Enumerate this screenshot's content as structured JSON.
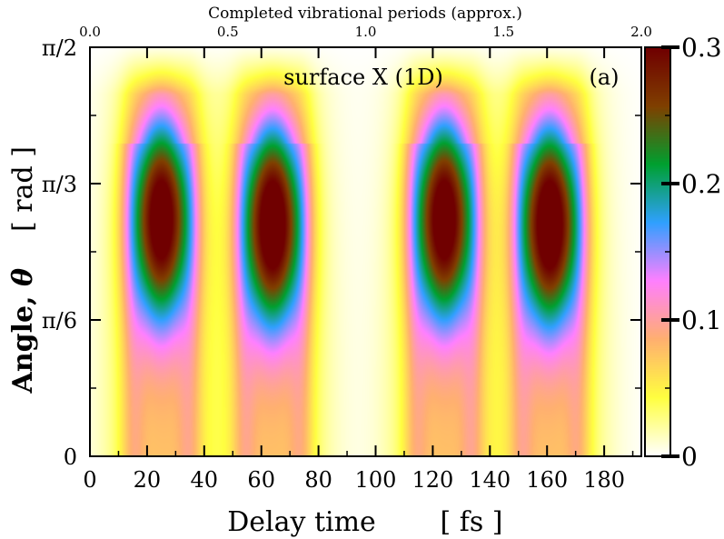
{
  "chart_data": {
    "type": "heatmap",
    "panel_label": "(a)",
    "annotation": "surface X (1D)",
    "xlabel": "Delay time",
    "xunit": "[ fs ]",
    "ylabel_main": "Angle, ",
    "ylabel_symbol": "θ",
    "yunit": "[ rad ]",
    "top_axis_label": "Completed vibrational periods (approx.)",
    "xlim": [
      0,
      193
    ],
    "ylim_rad": [
      0,
      1.5708
    ],
    "x_ticks": [
      0,
      20,
      40,
      60,
      80,
      100,
      120,
      140,
      160,
      180
    ],
    "x_tick_labels": [
      "0",
      "20",
      "40",
      "60",
      "80",
      "100",
      "120",
      "140",
      "160",
      "180"
    ],
    "y_ticks_rad": [
      0,
      0.5236,
      1.0472,
      1.5708
    ],
    "y_tick_labels": [
      "0",
      "π/6",
      "π/3",
      "π/2"
    ],
    "top_ticks": [
      0.0,
      0.5,
      1.0,
      1.5,
      2.0
    ],
    "top_tick_labels": [
      "0.0",
      "0.5",
      "1.0",
      "1.5",
      "2.0"
    ],
    "colorbar": {
      "range": [
        0,
        0.3
      ],
      "ticks": [
        0,
        0.1,
        0.2,
        0.3
      ],
      "tick_labels": [
        "0",
        "0.1",
        "0.2",
        "0.3"
      ],
      "colors": [
        "#ffffff",
        "#ffff40",
        "#ffb070",
        "#ff80ff",
        "#30a0ff",
        "#00a030",
        "#804000",
        "#700000"
      ]
    },
    "lobes": [
      {
        "t_center": 25,
        "theta_center_rad": 0.92,
        "peak": 0.28
      },
      {
        "t_center": 64,
        "theta_center_rad": 0.9,
        "peak": 0.29
      },
      {
        "t_center": 124,
        "theta_center_rad": 0.92,
        "peak": 0.28
      },
      {
        "t_center": 161,
        "theta_center_rad": 0.9,
        "peak": 0.29
      }
    ]
  }
}
